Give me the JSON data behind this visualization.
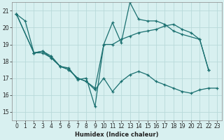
{
  "xlabel": "Humidex (Indice chaleur)",
  "bg_color": "#d8f0f0",
  "grid_color": "#b8dada",
  "line_color": "#1a7070",
  "xlim": [
    -0.5,
    23.5
  ],
  "ylim": [
    14.5,
    21.5
  ],
  "yticks": [
    15,
    16,
    17,
    18,
    19,
    20,
    21
  ],
  "xticks": [
    0,
    1,
    2,
    3,
    4,
    5,
    6,
    7,
    8,
    9,
    10,
    11,
    12,
    13,
    14,
    15,
    16,
    17,
    18,
    19,
    20,
    21,
    22,
    23
  ],
  "line1_x": [
    0,
    1,
    2,
    3,
    4,
    5,
    6,
    7,
    8,
    9,
    10,
    11,
    12,
    13,
    14,
    15,
    16,
    17,
    18,
    19,
    21,
    22
  ],
  "line1_y": [
    20.8,
    20.4,
    18.5,
    18.6,
    18.3,
    17.7,
    17.6,
    16.9,
    17.0,
    15.3,
    19.0,
    20.3,
    19.1,
    21.5,
    20.5,
    20.4,
    20.4,
    20.2,
    19.8,
    19.6,
    19.3,
    17.5
  ],
  "line2_x": [
    0,
    2,
    3,
    4,
    5,
    6,
    7,
    8,
    9,
    10,
    11,
    12,
    13,
    14,
    15,
    16,
    17,
    18,
    19,
    20,
    21,
    22
  ],
  "line2_y": [
    20.8,
    18.5,
    18.6,
    18.2,
    17.7,
    17.5,
    17.0,
    16.8,
    16.4,
    19.0,
    19.0,
    19.3,
    19.5,
    19.7,
    19.8,
    19.9,
    20.1,
    20.2,
    19.9,
    19.7,
    19.3,
    17.5
  ],
  "line3_x": [
    0,
    2,
    3,
    4,
    5,
    6,
    7,
    8,
    9,
    10,
    11,
    12,
    13,
    14,
    15,
    16,
    17,
    18,
    19,
    20,
    21,
    22,
    23
  ],
  "line3_y": [
    20.8,
    18.5,
    18.5,
    18.2,
    17.7,
    17.5,
    17.0,
    16.8,
    16.3,
    17.0,
    16.2,
    16.8,
    17.2,
    17.4,
    17.2,
    16.8,
    16.6,
    16.4,
    16.2,
    16.1,
    16.3,
    16.4,
    16.4
  ]
}
